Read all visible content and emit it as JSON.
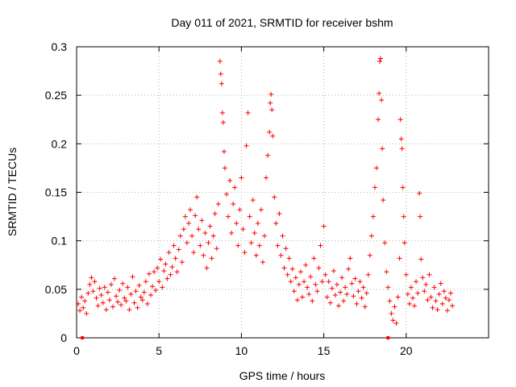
{
  "chart_data": {
    "type": "scatter",
    "title": "Day 011 of 2021, SRMTID for receiver bshm",
    "xlabel": "GPS time / hours",
    "ylabel": "SRMTID / TECUs",
    "xlim": [
      0,
      25
    ],
    "ylim": [
      0,
      0.3
    ],
    "x_ticks": [
      0,
      5,
      10,
      15,
      20
    ],
    "x_tick_labels": [
      "0",
      "5",
      "10",
      "15",
      "20"
    ],
    "y_ticks": [
      0,
      0.05,
      0.1,
      0.15,
      0.2,
      0.25,
      0.3
    ],
    "y_tick_labels": [
      "0",
      "0.05",
      "0.1",
      "0.15",
      "0.2",
      "0.25",
      "0.3"
    ],
    "grid": true,
    "marker": "plus",
    "series_color": "#ff0000",
    "series": [
      {
        "name": "SRMTID",
        "points": [
          [
            0.1,
            0.035
          ],
          [
            0.2,
            0.028
          ],
          [
            0.3,
            0.042
          ],
          [
            0.4,
            0.031
          ],
          [
            0.5,
            0.038
          ],
          [
            0.6,
            0.025
          ],
          [
            0.7,
            0.046
          ],
          [
            0.8,
            0.055
          ],
          [
            0.9,
            0.062
          ],
          [
            1.0,
            0.048
          ],
          [
            1.1,
            0.058
          ],
          [
            1.2,
            0.041
          ],
          [
            1.3,
            0.033
          ],
          [
            1.4,
            0.051
          ],
          [
            1.5,
            0.044
          ],
          [
            1.6,
            0.036
          ],
          [
            1.7,
            0.052
          ],
          [
            1.8,
            0.029
          ],
          [
            1.9,
            0.047
          ],
          [
            2.0,
            0.039
          ],
          [
            2.1,
            0.055
          ],
          [
            2.2,
            0.032
          ],
          [
            2.3,
            0.061
          ],
          [
            2.4,
            0.043
          ],
          [
            2.5,
            0.037
          ],
          [
            2.6,
            0.049
          ],
          [
            2.7,
            0.034
          ],
          [
            2.8,
            0.056
          ],
          [
            2.9,
            0.041
          ],
          [
            3.0,
            0.038
          ],
          [
            3.1,
            0.052
          ],
          [
            3.2,
            0.029
          ],
          [
            3.3,
            0.045
          ],
          [
            3.4,
            0.063
          ],
          [
            3.5,
            0.036
          ],
          [
            3.6,
            0.048
          ],
          [
            3.7,
            0.031
          ],
          [
            3.8,
            0.054
          ],
          [
            3.9,
            0.042
          ],
          [
            4.0,
            0.039
          ],
          [
            4.1,
            0.047
          ],
          [
            4.2,
            0.058
          ],
          [
            4.3,
            0.035
          ],
          [
            4.4,
            0.066
          ],
          [
            4.5,
            0.044
          ],
          [
            4.6,
            0.053
          ],
          [
            4.7,
            0.068
          ],
          [
            4.8,
            0.049
          ],
          [
            4.9,
            0.072
          ],
          [
            5.0,
            0.058
          ],
          [
            5.1,
            0.081
          ],
          [
            5.2,
            0.052
          ],
          [
            5.3,
            0.069
          ],
          [
            5.4,
            0.076
          ],
          [
            5.5,
            0.061
          ],
          [
            5.6,
            0.088
          ],
          [
            5.7,
            0.065
          ],
          [
            5.8,
            0.073
          ],
          [
            5.9,
            0.095
          ],
          [
            6.0,
            0.082
          ],
          [
            6.1,
            0.068
          ],
          [
            6.2,
            0.091
          ],
          [
            6.3,
            0.105
          ],
          [
            6.4,
            0.078
          ],
          [
            6.5,
            0.112
          ],
          [
            6.6,
            0.125
          ],
          [
            6.7,
            0.098
          ],
          [
            6.8,
            0.118
          ],
          [
            6.9,
            0.132
          ],
          [
            7.0,
            0.105
          ],
          [
            7.1,
            0.088
          ],
          [
            7.2,
            0.126
          ],
          [
            7.3,
            0.145
          ],
          [
            7.4,
            0.112
          ],
          [
            7.5,
            0.095
          ],
          [
            7.6,
            0.121
          ],
          [
            7.7,
            0.085
          ],
          [
            7.8,
            0.108
          ],
          [
            7.9,
            0.072
          ],
          [
            8.0,
            0.098
          ],
          [
            8.1,
            0.115
          ],
          [
            8.2,
            0.082
          ],
          [
            8.3,
            0.105
          ],
          [
            8.4,
            0.128
          ],
          [
            8.5,
            0.092
          ],
          [
            8.6,
            0.138
          ],
          [
            8.7,
            0.285
          ],
          [
            8.75,
            0.272
          ],
          [
            8.8,
            0.262
          ],
          [
            8.85,
            0.232
          ],
          [
            8.9,
            0.222
          ],
          [
            8.95,
            0.192
          ],
          [
            9.0,
            0.175
          ],
          [
            9.1,
            0.148
          ],
          [
            9.2,
            0.125
          ],
          [
            9.3,
            0.162
          ],
          [
            9.4,
            0.108
          ],
          [
            9.5,
            0.138
          ],
          [
            9.6,
            0.155
          ],
          [
            9.7,
            0.118
          ],
          [
            9.8,
            0.095
          ],
          [
            9.9,
            0.132
          ],
          [
            10.0,
            0.165
          ],
          [
            10.1,
            0.112
          ],
          [
            10.2,
            0.088
          ],
          [
            10.3,
            0.198
          ],
          [
            10.4,
            0.232
          ],
          [
            10.5,
            0.125
          ],
          [
            10.6,
            0.098
          ],
          [
            10.7,
            0.142
          ],
          [
            10.8,
            0.108
          ],
          [
            10.9,
            0.085
          ],
          [
            11.0,
            0.118
          ],
          [
            11.1,
            0.095
          ],
          [
            11.2,
            0.132
          ],
          [
            11.3,
            0.078
          ],
          [
            11.4,
            0.105
          ],
          [
            11.5,
            0.165
          ],
          [
            11.6,
            0.188
          ],
          [
            11.7,
            0.212
          ],
          [
            11.75,
            0.242
          ],
          [
            11.8,
            0.251
          ],
          [
            11.85,
            0.235
          ],
          [
            11.9,
            0.208
          ],
          [
            12.0,
            0.145
          ],
          [
            12.1,
            0.118
          ],
          [
            12.2,
            0.095
          ],
          [
            12.3,
            0.128
          ],
          [
            12.4,
            0.085
          ],
          [
            12.5,
            0.105
          ],
          [
            12.6,
            0.072
          ],
          [
            12.7,
            0.092
          ],
          [
            12.8,
            0.065
          ],
          [
            12.9,
            0.082
          ],
          [
            13.0,
            0.058
          ],
          [
            13.1,
            0.071
          ],
          [
            13.2,
            0.048
          ],
          [
            13.3,
            0.062
          ],
          [
            13.4,
            0.039
          ],
          [
            13.5,
            0.055
          ],
          [
            13.6,
            0.068
          ],
          [
            13.7,
            0.042
          ],
          [
            13.8,
            0.058
          ],
          [
            13.9,
            0.075
          ],
          [
            14.0,
            0.052
          ],
          [
            14.1,
            0.045
          ],
          [
            14.2,
            0.063
          ],
          [
            14.3,
            0.038
          ],
          [
            14.4,
            0.082
          ],
          [
            14.5,
            0.055
          ],
          [
            14.6,
            0.048
          ],
          [
            14.7,
            0.072
          ],
          [
            14.8,
            0.095
          ],
          [
            14.9,
            0.058
          ],
          [
            15.0,
            0.115
          ],
          [
            15.1,
            0.065
          ],
          [
            15.2,
            0.042
          ],
          [
            15.3,
            0.058
          ],
          [
            15.4,
            0.036
          ],
          [
            15.5,
            0.051
          ],
          [
            15.6,
            0.069
          ],
          [
            15.7,
            0.044
          ],
          [
            15.8,
            0.055
          ],
          [
            15.9,
            0.033
          ],
          [
            16.0,
            0.047
          ],
          [
            16.1,
            0.062
          ],
          [
            16.2,
            0.038
          ],
          [
            16.3,
            0.052
          ],
          [
            16.4,
            0.045
          ],
          [
            16.5,
            0.071
          ],
          [
            16.6,
            0.082
          ],
          [
            16.7,
            0.056
          ],
          [
            16.8,
            0.043
          ],
          [
            16.9,
            0.061
          ],
          [
            17.0,
            0.035
          ],
          [
            17.1,
            0.048
          ],
          [
            17.2,
            0.058
          ],
          [
            17.3,
            0.041
          ],
          [
            17.4,
            0.052
          ],
          [
            17.5,
            0.032
          ],
          [
            17.6,
            0.046
          ],
          [
            17.7,
            0.065
          ],
          [
            17.8,
            0.085
          ],
          [
            17.9,
            0.105
          ],
          [
            18.0,
            0.125
          ],
          [
            18.1,
            0.155
          ],
          [
            18.2,
            0.175
          ],
          [
            18.3,
            0.225
          ],
          [
            18.35,
            0.252
          ],
          [
            18.4,
            0.285
          ],
          [
            18.45,
            0.288
          ],
          [
            18.5,
            0.245
          ],
          [
            18.55,
            0.195
          ],
          [
            18.6,
            0.142
          ],
          [
            18.7,
            0.098
          ],
          [
            18.8,
            0.068
          ],
          [
            18.9,
            0.052
          ],
          [
            19.0,
            0.038
          ],
          [
            19.1,
            0.025
          ],
          [
            19.2,
            0.018
          ],
          [
            19.3,
            0.032
          ],
          [
            19.4,
            0.015
          ],
          [
            19.5,
            0.042
          ],
          [
            19.6,
            0.082
          ],
          [
            19.65,
            0.225
          ],
          [
            19.7,
            0.205
          ],
          [
            19.75,
            0.195
          ],
          [
            19.8,
            0.155
          ],
          [
            19.85,
            0.125
          ],
          [
            19.9,
            0.098
          ],
          [
            20.0,
            0.065
          ],
          [
            20.1,
            0.045
          ],
          [
            20.2,
            0.035
          ],
          [
            20.3,
            0.052
          ],
          [
            20.4,
            0.041
          ],
          [
            20.5,
            0.033
          ],
          [
            20.6,
            0.058
          ],
          [
            20.7,
            0.046
          ],
          [
            20.8,
            0.149
          ],
          [
            20.85,
            0.125
          ],
          [
            20.9,
            0.081
          ],
          [
            21.0,
            0.062
          ],
          [
            21.1,
            0.048
          ],
          [
            21.2,
            0.055
          ],
          [
            21.3,
            0.039
          ],
          [
            21.4,
            0.065
          ],
          [
            21.5,
            0.042
          ],
          [
            21.6,
            0.031
          ],
          [
            21.7,
            0.052
          ],
          [
            21.8,
            0.038
          ],
          [
            21.9,
            0.029
          ],
          [
            22.0,
            0.045
          ],
          [
            22.1,
            0.056
          ],
          [
            22.2,
            0.035
          ],
          [
            22.3,
            0.048
          ],
          [
            22.4,
            0.041
          ],
          [
            22.5,
            0.028
          ],
          [
            22.6,
            0.039
          ],
          [
            22.7,
            0.046
          ],
          [
            22.8,
            0.033
          ]
        ]
      },
      {
        "name": "gap markers",
        "points": [
          [
            0.35,
            0.0
          ],
          [
            18.9,
            0.0
          ]
        ]
      }
    ]
  }
}
